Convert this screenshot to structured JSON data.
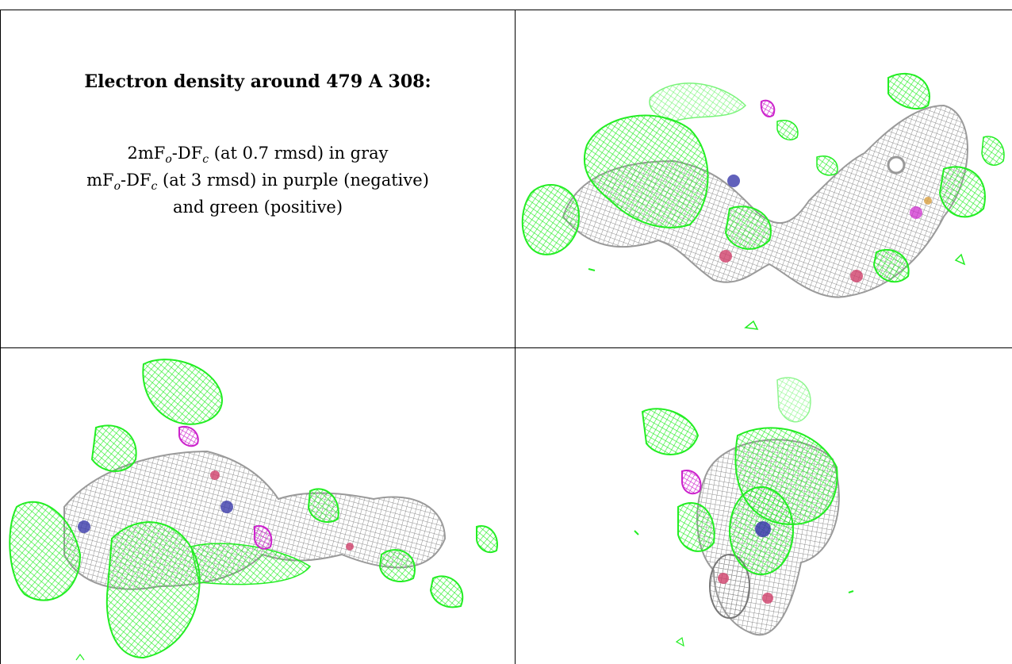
{
  "caption": {
    "title": "Electron density around 479 A 308:",
    "line1_prefix": "2mF",
    "line1_sub1": "o",
    "line1_mid": "-DF",
    "line1_sub2": "c",
    "line1_suffix": " (at 0.7 rmsd) in gray",
    "line2_prefix": "mF",
    "line2_sub1": "o",
    "line2_mid": "-DF",
    "line2_sub2": "c",
    "line2_suffix": " (at 3 rmsd) in purple (negative)",
    "line3": "and green (positive)"
  },
  "colors": {
    "positive_density": "#22ee22",
    "negative_density": "#cc22cc",
    "map_density": "#9a9a9a",
    "nitrogen": "#3a3aaa",
    "oxygen": "#d0406a",
    "sulfur": "#d9a040"
  }
}
